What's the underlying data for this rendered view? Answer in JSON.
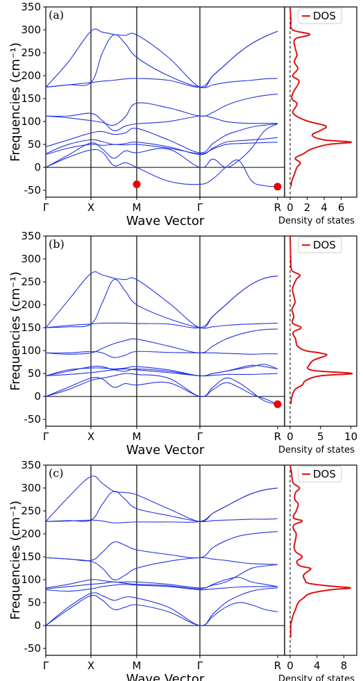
{
  "colors": {
    "band": "#2233dd",
    "dos": "#dd1111",
    "phonon": "#ee0000",
    "axis": "#000000"
  },
  "chart_data": [
    {
      "type": "line",
      "panel_label": "(a)",
      "ylabel": "Frequencies (cm$^{-1}$)",
      "ylabel_display": "Frequencies (cm⁻¹)",
      "xlabel": "Wave Vector",
      "ylim": [
        -65,
        350
      ],
      "yticks": [
        -50,
        0,
        50,
        100,
        150,
        200,
        250,
        300,
        350
      ],
      "kpoints": [
        "Γ",
        "X",
        "M",
        "Γ",
        "R"
      ],
      "imaginary_modes": [
        {
          "segment": "M",
          "y": -37
        },
        {
          "segment": "R",
          "y": -42
        }
      ],
      "bands": [
        [
          0,
          27,
          53,
          40,
          20,
          36,
          32,
          40,
          0,
          18,
          0,
          15,
          42,
          80,
          95
        ],
        [
          0,
          22,
          38,
          33,
          4,
          10,
          0,
          -30,
          -37,
          -25,
          0,
          15,
          -30,
          -40,
          -42
        ],
        [
          28,
          42,
          50,
          48,
          50,
          49,
          50,
          42,
          30,
          40,
          50,
          52,
          53,
          54,
          55
        ],
        [
          30,
          50,
          60,
          56,
          50,
          52,
          55,
          45,
          28,
          42,
          55,
          58,
          60,
          62,
          65
        ],
        [
          45,
          60,
          75,
          78,
          72,
          75,
          85,
          60,
          32,
          52,
          70,
          80,
          88,
          92,
          95
        ],
        [
          112,
          112,
          118,
          102,
          80,
          90,
          95,
          100,
          112,
          108,
          100,
          97,
          96,
          96,
          96
        ],
        [
          112,
          108,
          102,
          98,
          92,
          110,
          140,
          130,
          112,
          120,
          135,
          145,
          152,
          157,
          160
        ],
        [
          175,
          180,
          185,
          188,
          190,
          193,
          194,
          190,
          175,
          200,
          225,
          250,
          270,
          285,
          297
        ],
        [
          175,
          230,
          297,
          295,
          290,
          288,
          289,
          240,
          175,
          200,
          225,
          250,
          270,
          285,
          297
        ],
        [
          175,
          180,
          185,
          250,
          289,
          270,
          240,
          200,
          175,
          180,
          185,
          188,
          190,
          193,
          194
        ]
      ],
      "dos": {
        "xlim": [
          0,
          7.5
        ],
        "xticks": [
          0,
          2,
          4,
          6
        ],
        "xlabel": "Density of states",
        "legend": "DOS",
        "curve": [
          [
            -42,
            0.1
          ],
          [
            -30,
            0.2
          ],
          [
            -15,
            0.5
          ],
          [
            0,
            0.8
          ],
          [
            10,
            1.2
          ],
          [
            20,
            0.6
          ],
          [
            30,
            1.6
          ],
          [
            40,
            2.5
          ],
          [
            50,
            4.5
          ],
          [
            55,
            7.2
          ],
          [
            60,
            4.0
          ],
          [
            70,
            2.6
          ],
          [
            80,
            3.5
          ],
          [
            90,
            4.2
          ],
          [
            100,
            2.2
          ],
          [
            110,
            0.9
          ],
          [
            120,
            0.3
          ],
          [
            130,
            0.6
          ],
          [
            140,
            0.8
          ],
          [
            150,
            0.2
          ],
          [
            165,
            0.4
          ],
          [
            180,
            0.9
          ],
          [
            190,
            1.0
          ],
          [
            200,
            0.3
          ],
          [
            215,
            0.9
          ],
          [
            230,
            0.5
          ],
          [
            245,
            0.8
          ],
          [
            260,
            0.6
          ],
          [
            280,
            0.6
          ],
          [
            290,
            2.3
          ],
          [
            300,
            0.3
          ],
          [
            320,
            0.1
          ],
          [
            350,
            0
          ]
        ]
      }
    },
    {
      "type": "line",
      "panel_label": "(b)",
      "ylabel": "Frequencies (cm$^{-1}$)",
      "ylabel_display": "Frequencies (cm⁻¹)",
      "xlabel": "Wave Vector",
      "ylim": [
        -65,
        350
      ],
      "yticks": [
        -50,
        0,
        50,
        100,
        150,
        200,
        250,
        300,
        350
      ],
      "kpoints": [
        "Γ",
        "X",
        "M",
        "Γ",
        "R"
      ],
      "imaginary_modes": [
        {
          "segment": "R",
          "y": -17
        }
      ],
      "bands": [
        [
          0,
          15,
          35,
          40,
          45,
          50,
          48,
          40,
          0,
          20,
          40,
          30,
          10,
          -10,
          -17
        ],
        [
          0,
          20,
          40,
          38,
          20,
          28,
          25,
          30,
          0,
          15,
          30,
          20,
          5,
          -5,
          -17
        ],
        [
          45,
          48,
          52,
          55,
          58,
          60,
          58,
          52,
          45,
          46,
          48,
          48,
          48,
          49,
          50
        ],
        [
          45,
          55,
          65,
          65,
          58,
          55,
          60,
          55,
          45,
          50,
          55,
          60,
          65,
          70,
          60
        ],
        [
          45,
          58,
          62,
          62,
          60,
          62,
          65,
          58,
          45,
          50,
          55,
          62,
          68,
          65,
          60
        ],
        [
          95,
          95,
          98,
          95,
          85,
          90,
          98,
          96,
          95,
          95,
          94,
          93,
          92,
          93,
          93
        ],
        [
          95,
          92,
          95,
          105,
          115,
          122,
          125,
          110,
          95,
          110,
          125,
          135,
          142,
          146,
          147
        ],
        [
          150,
          155,
          158,
          160,
          160,
          160,
          159,
          158,
          150,
          175,
          200,
          225,
          245,
          258,
          263
        ],
        [
          150,
          210,
          268,
          265,
          258,
          255,
          255,
          205,
          150,
          175,
          200,
          225,
          245,
          258,
          263
        ],
        [
          150,
          152,
          158,
          205,
          255,
          230,
          200,
          170,
          150,
          152,
          155,
          157,
          158,
          159,
          160
        ]
      ],
      "dos": {
        "xlim": [
          0,
          10.5
        ],
        "xticks": [
          0,
          5,
          10
        ],
        "xlabel": "Density of states",
        "legend": "DOS",
        "curve": [
          [
            -17,
            0.1
          ],
          [
            0,
            0.3
          ],
          [
            15,
            0.8
          ],
          [
            25,
            2.0
          ],
          [
            35,
            2.6
          ],
          [
            45,
            5.0
          ],
          [
            50,
            10.2
          ],
          [
            55,
            5.0
          ],
          [
            60,
            3.0
          ],
          [
            70,
            3.2
          ],
          [
            80,
            4.0
          ],
          [
            90,
            6.0
          ],
          [
            95,
            4.8
          ],
          [
            100,
            2.5
          ],
          [
            110,
            1.2
          ],
          [
            125,
            0.9
          ],
          [
            140,
            0.5
          ],
          [
            150,
            1.8
          ],
          [
            160,
            0.4
          ],
          [
            175,
            0.6
          ],
          [
            190,
            0.3
          ],
          [
            205,
            0.8
          ],
          [
            220,
            0.6
          ],
          [
            235,
            0.4
          ],
          [
            255,
            1.0
          ],
          [
            265,
            1.6
          ],
          [
            275,
            0.3
          ],
          [
            300,
            0.1
          ],
          [
            350,
            0
          ]
        ]
      }
    },
    {
      "type": "line",
      "panel_label": "(c)",
      "ylabel": "Frequencies (cm$^{-1}$)",
      "ylabel_display": "Frequencies (cm⁻¹)",
      "xlabel": "Wave Vector",
      "ylim": [
        -65,
        350
      ],
      "yticks": [
        -50,
        0,
        50,
        100,
        150,
        200,
        250,
        300,
        350
      ],
      "kpoints": [
        "Γ",
        "X",
        "M",
        "Γ",
        "R"
      ],
      "imaginary_modes": [],
      "bands": [
        [
          0,
          35,
          65,
          55,
          35,
          40,
          45,
          30,
          0,
          20,
          40,
          50,
          45,
          35,
          30
        ],
        [
          0,
          40,
          70,
          65,
          55,
          62,
          60,
          40,
          0,
          25,
          50,
          65,
          75,
          80,
          82
        ],
        [
          78,
          75,
          80,
          85,
          88,
          90,
          88,
          85,
          78,
          80,
          82,
          84,
          85,
          85,
          85
        ],
        [
          80,
          85,
          90,
          92,
          95,
          92,
          90,
          87,
          80,
          90,
          100,
          105,
          95,
          90,
          85
        ],
        [
          82,
          90,
          100,
          98,
          95,
          95,
          95,
          90,
          82,
          88,
          95,
          110,
          125,
          130,
          133
        ],
        [
          148,
          145,
          140,
          125,
          100,
          110,
          125,
          140,
          148,
          145,
          142,
          138,
          135,
          134,
          133
        ],
        [
          148,
          145,
          142,
          160,
          182,
          175,
          165,
          155,
          148,
          170,
          185,
          195,
          200,
          203,
          205
        ],
        [
          227,
          228,
          230,
          228,
          224,
          225,
          226,
          226,
          227,
          245,
          260,
          275,
          288,
          296,
          300
        ],
        [
          227,
          280,
          325,
          310,
          293,
          290,
          285,
          255,
          227,
          245,
          260,
          275,
          288,
          296,
          300
        ],
        [
          227,
          229,
          230,
          265,
          293,
          275,
          255,
          240,
          227,
          229,
          230,
          231,
          232,
          232,
          233
        ]
      ],
      "dos": {
        "xlim": [
          0,
          9.5
        ],
        "xticks": [
          0,
          4,
          8
        ],
        "xlabel": "Density of states",
        "legend": "DOS",
        "curve": [
          [
            -25,
            0.1
          ],
          [
            0,
            0.1
          ],
          [
            20,
            0.4
          ],
          [
            35,
            0.8
          ],
          [
            50,
            1.2
          ],
          [
            60,
            2.0
          ],
          [
            70,
            3.0
          ],
          [
            78,
            6.0
          ],
          [
            82,
            9.0
          ],
          [
            86,
            6.0
          ],
          [
            92,
            2.8
          ],
          [
            100,
            2.2
          ],
          [
            110,
            2.0
          ],
          [
            120,
            2.8
          ],
          [
            125,
            3.0
          ],
          [
            130,
            1.5
          ],
          [
            140,
            1.0
          ],
          [
            150,
            1.8
          ],
          [
            160,
            0.9
          ],
          [
            170,
            0.6
          ],
          [
            180,
            0.7
          ],
          [
            200,
            0.9
          ],
          [
            210,
            0.5
          ],
          [
            220,
            0.6
          ],
          [
            228,
            1.8
          ],
          [
            235,
            0.5
          ],
          [
            250,
            0.9
          ],
          [
            265,
            1.2
          ],
          [
            275,
            0.7
          ],
          [
            290,
            0.8
          ],
          [
            300,
            1.4
          ],
          [
            310,
            0.5
          ],
          [
            320,
            0.3
          ],
          [
            335,
            0.2
          ],
          [
            350,
            0
          ]
        ]
      }
    }
  ]
}
